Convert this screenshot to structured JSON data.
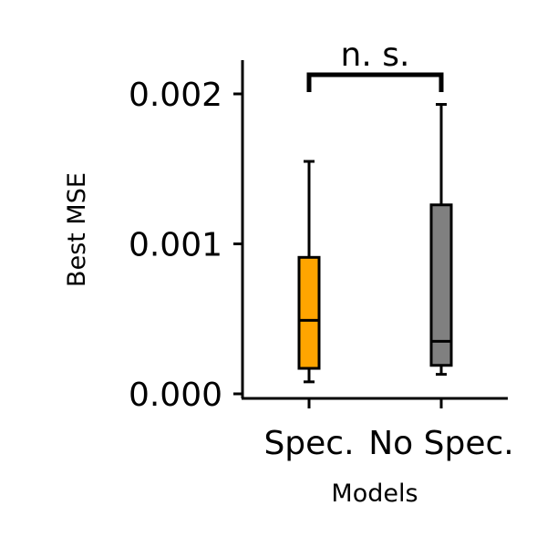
{
  "chart_data": {
    "type": "box",
    "xlabel": "Models",
    "ylabel": "Best MSE",
    "ylim": [
      0,
      0.00222
    ],
    "yticks": [
      0,
      0.001,
      0.002
    ],
    "ytick_labels": [
      "0.000",
      "0.001",
      "0.002"
    ],
    "categories": [
      "Spec.",
      "No Spec."
    ],
    "boxes": [
      {
        "category": "Spec.",
        "whisker_low": 8e-05,
        "q1": 0.00017,
        "median": 0.00049,
        "q3": 0.00091,
        "whisker_high": 0.00155,
        "color": "#FFA500"
      },
      {
        "category": "No Spec.",
        "whisker_low": 0.00013,
        "q1": 0.00019,
        "median": 0.00035,
        "q3": 0.00126,
        "whisker_high": 0.00193,
        "color": "#808080"
      }
    ],
    "significance": {
      "label": "n. s.",
      "between": [
        "Spec.",
        "No Spec."
      ]
    },
    "grid": false,
    "legend": "none"
  }
}
